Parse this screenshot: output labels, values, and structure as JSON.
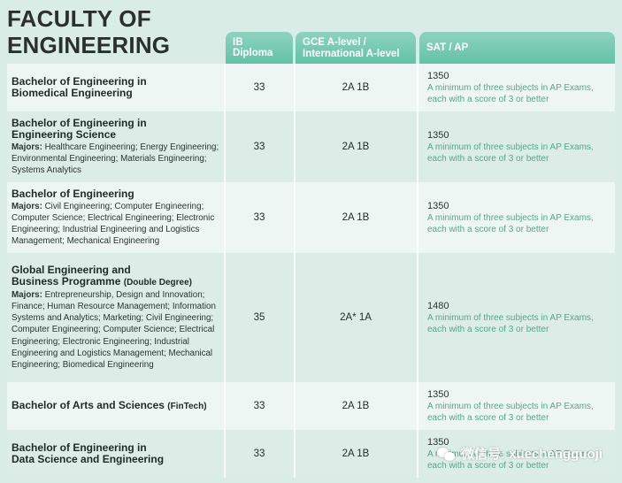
{
  "title_line1": "FACULTY OF",
  "title_line2": "ENGINEERING",
  "headers": {
    "ib": "IB Diploma",
    "gce_line1": "GCE A-level /",
    "gce_line2": "International A-level",
    "sat": "SAT / AP"
  },
  "ap_note_line1": "A minimum of three subjects in AP Exams,",
  "ap_note_line2": "each with a score of 3 or better",
  "majors_label": "Majors:",
  "rows": [
    {
      "name_line1": "Bachelor of Engineering in",
      "name_line2": "Biomedical Engineering",
      "ib": "33",
      "gce": "2A 1B",
      "sat": "1350"
    },
    {
      "name_line1": "Bachelor of Engineering in",
      "name_line2": "Engineering Science",
      "majors": "Healthcare Engineering; Energy Engineering; Environmental Engineering; Materials Engineering; Systems Analytics",
      "ib": "33",
      "gce": "2A 1B",
      "sat": "1350"
    },
    {
      "name_line1": "Bachelor of Engineering",
      "majors": "Civil Engineering; Computer Engineering; Computer Science; Electrical Engineering; Electronic Engineering; Industrial Engineering and Logistics Management; Mechanical Engineering",
      "ib": "33",
      "gce": "2A 1B",
      "sat": "1350"
    },
    {
      "name_line1": "Global Engineering and",
      "name_line2": "Business Programme",
      "tag": "(Double Degree)",
      "majors": "Entrepreneurship, Design and Innovation; Finance; Human Resource Management; Information Systems and Analytics; Marketing; Civil Engineering; Computer Engineering; Computer Science; Electrical Engineering; Electronic Engineering; Industrial Engineering and Logistics Management; Mechanical Engineering; Biomedical Engineering",
      "ib": "35",
      "gce": "2A* 1A",
      "sat": "1480"
    },
    {
      "name_line1": "Bachelor of Arts and Sciences",
      "tag": "(FinTech)",
      "ib": "33",
      "gce": "2A 1B",
      "sat": "1350"
    },
    {
      "name_line1": "Bachelor of Engineering in",
      "name_line2": "Data Science and Engineering",
      "ib": "33",
      "gce": "2A 1B",
      "sat": "1350"
    }
  ],
  "watermark": "微信号: xuechengguoji"
}
